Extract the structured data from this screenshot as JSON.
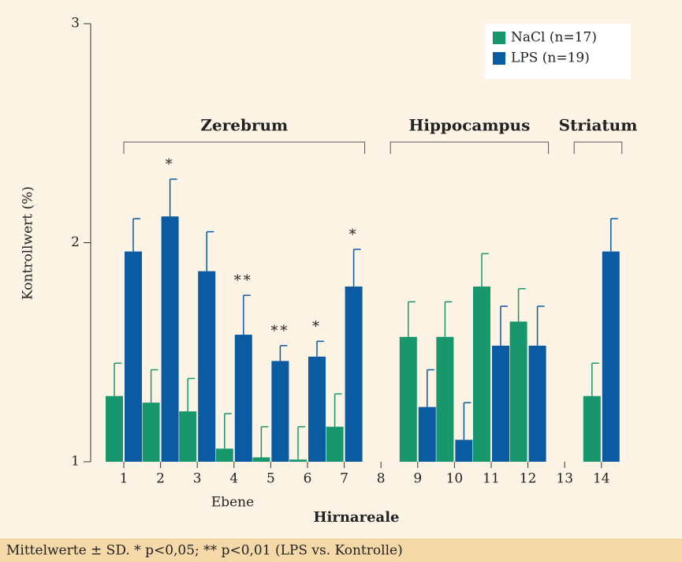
{
  "chart_data": {
    "type": "bar",
    "y_label": "Kontrollwert (%)",
    "x_label": "Hirnareale",
    "x_sublabel": "Ebene",
    "footnote": "Mittelwerte ± SD. * p<0,05; ** p<0,01 (LPS vs. Kontrolle)",
    "categories": [
      "1",
      "2",
      "3",
      "4",
      "5",
      "6",
      "7",
      "8",
      "9",
      "10",
      "11",
      "12",
      "13",
      "14"
    ],
    "series": [
      {
        "name": "NaCl (n=17)",
        "color": "#17976b",
        "values": [
          1.3,
          1.27,
          1.23,
          1.06,
          1.02,
          1.01,
          1.16,
          null,
          1.57,
          1.57,
          1.8,
          1.64,
          null,
          1.3
        ],
        "errors": [
          0.15,
          0.15,
          0.15,
          0.16,
          0.14,
          0.15,
          0.15,
          null,
          0.16,
          0.16,
          0.15,
          0.15,
          null,
          0.15
        ]
      },
      {
        "name": "LPS (n=19)",
        "color": "#0b5ba3",
        "values": [
          1.96,
          2.12,
          1.87,
          1.58,
          1.46,
          1.48,
          1.8,
          null,
          1.25,
          1.1,
          1.53,
          1.53,
          null,
          1.96
        ],
        "errors": [
          0.15,
          0.17,
          0.18,
          0.18,
          0.07,
          0.07,
          0.17,
          null,
          0.17,
          0.17,
          0.18,
          0.18,
          null,
          0.15
        ]
      }
    ],
    "annotations": [
      {
        "category": "2",
        "text": "*"
      },
      {
        "category": "4",
        "text": "**"
      },
      {
        "category": "5",
        "text": "**"
      },
      {
        "category": "6",
        "text": "*"
      },
      {
        "category": "7",
        "text": "*"
      }
    ],
    "groups": [
      {
        "label": "Zerebrum",
        "from": "1",
        "to": "7"
      },
      {
        "label": "Hippocampus",
        "from": "8",
        "to": "12"
      },
      {
        "label": "Striatum",
        "from": "13",
        "to": "14"
      }
    ],
    "ylim": [
      1,
      3
    ],
    "yticks": [
      1,
      2,
      3
    ],
    "legend": "top-right"
  }
}
